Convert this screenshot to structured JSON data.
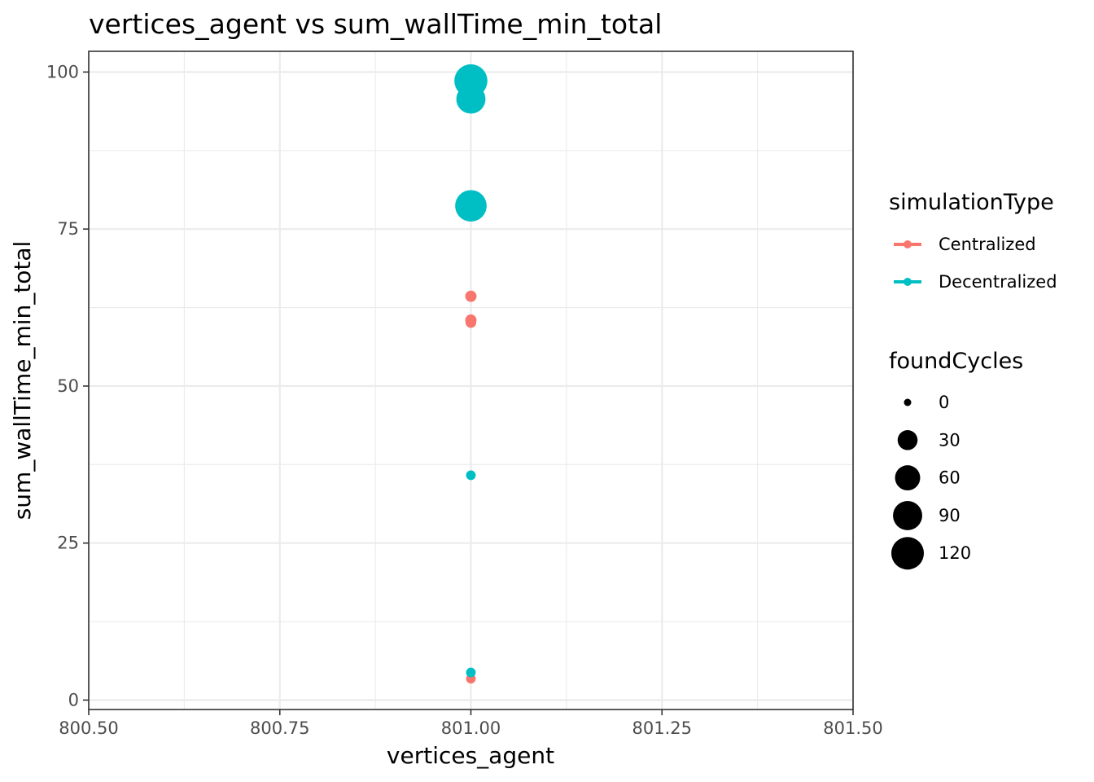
{
  "chart_data": {
    "type": "scatter",
    "title": "vertices_agent  vs  sum_wallTime_min_total",
    "xlabel": "vertices_agent",
    "ylabel": "sum_wallTime_min_total",
    "xlim": [
      800.5,
      801.5
    ],
    "ylim": [
      -1.5,
      103.3
    ],
    "x_ticks": [
      800.5,
      800.75,
      801.0,
      801.25,
      801.5
    ],
    "x_tick_labels": [
      "800.50",
      "800.75",
      "801.00",
      "801.25",
      "801.50"
    ],
    "y_ticks": [
      0,
      25,
      50,
      75,
      100
    ],
    "y_tick_labels": [
      "0",
      "25",
      "50",
      "75",
      "100"
    ],
    "grid": true,
    "legend_placement": "right",
    "colors": {
      "Centralized": "#F8766D",
      "Decentralized": "#00BFC4"
    },
    "series": [
      {
        "name": "Centralized",
        "color": "#F8766D",
        "points": [
          {
            "x": 801.0,
            "y": 64.3,
            "foundCycles": 3
          },
          {
            "x": 801.0,
            "y": 60.5,
            "foundCycles": 3
          },
          {
            "x": 801.0,
            "y": 60.1,
            "foundCycles": 2
          },
          {
            "x": 801.0,
            "y": 3.4,
            "foundCycles": 1
          }
        ]
      },
      {
        "name": "Decentralized",
        "color": "#00BFC4",
        "points": [
          {
            "x": 801.0,
            "y": 98.6,
            "foundCycles": 125
          },
          {
            "x": 801.0,
            "y": 95.7,
            "foundCycles": 90
          },
          {
            "x": 801.0,
            "y": 78.7,
            "foundCycles": 110
          },
          {
            "x": 801.0,
            "y": 35.8,
            "foundCycles": 1
          },
          {
            "x": 801.0,
            "y": 4.4,
            "foundCycles": 1
          }
        ]
      }
    ],
    "legend": {
      "color_title": "simulationType",
      "color_entries": [
        {
          "label": "Centralized",
          "color": "#F8766D"
        },
        {
          "label": "Decentralized",
          "color": "#00BFC4"
        }
      ],
      "size_title": "foundCycles",
      "size_entries": [
        {
          "label": "0",
          "value": 0
        },
        {
          "label": "30",
          "value": 30
        },
        {
          "label": "60",
          "value": 60
        },
        {
          "label": "90",
          "value": 90
        },
        {
          "label": "120",
          "value": 120
        }
      ]
    }
  }
}
